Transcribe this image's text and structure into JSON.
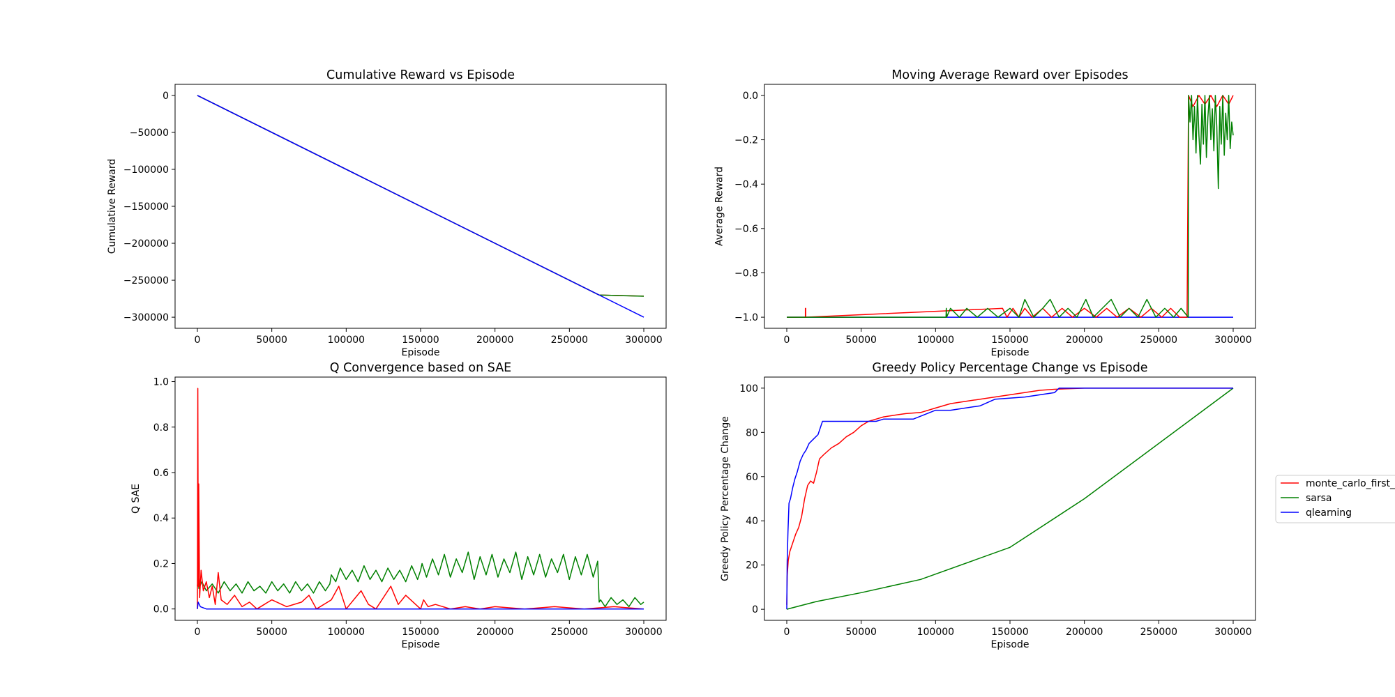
{
  "figure": {
    "legend": {
      "placement": "outside-right",
      "entries": [
        {
          "label": "monte_carlo_first_",
          "color": "#ff0000"
        },
        {
          "label": "sarsa",
          "color": "#008000"
        },
        {
          "label": "qlearning",
          "color": "#0000ff"
        }
      ]
    }
  },
  "chart_data": [
    {
      "type": "line",
      "title": "Cumulative Reward vs Episode",
      "xlabel": "Episode",
      "ylabel": "Cumulative Reward",
      "xlim": [
        -15000,
        315000
      ],
      "ylim": [
        -315000,
        15000
      ],
      "xticks": [
        0,
        50000,
        100000,
        150000,
        200000,
        250000,
        300000
      ],
      "yticks": [
        0,
        -50000,
        -100000,
        -150000,
        -200000,
        -250000,
        -300000
      ],
      "grid": false,
      "series": [
        {
          "name": "monte_carlo_first_",
          "color": "#ff0000",
          "x": [
            0,
            270000,
            300000
          ],
          "y": [
            0,
            -270000,
            -271500
          ]
        },
        {
          "name": "sarsa",
          "color": "#008000",
          "x": [
            0,
            270000,
            300000
          ],
          "y": [
            0,
            -270000,
            -271600
          ]
        },
        {
          "name": "qlearning",
          "color": "#0000ff",
          "x": [
            0,
            300000
          ],
          "y": [
            0,
            -300000
          ]
        }
      ]
    },
    {
      "type": "line",
      "title": "Moving Average Reward over Episodes",
      "xlabel": "Episode",
      "ylabel": "Average Reward",
      "xlim": [
        -15000,
        315000
      ],
      "ylim": [
        -1.05,
        0.05
      ],
      "xticks": [
        0,
        50000,
        100000,
        150000,
        200000,
        250000,
        300000
      ],
      "yticks": [
        0.0,
        -0.2,
        -0.4,
        -0.6,
        -0.8,
        -1.0
      ],
      "grid": false,
      "series": [
        {
          "name": "qlearning",
          "color": "#0000ff",
          "x": [
            0,
            300000
          ],
          "y": [
            -1.0,
            -1.0
          ]
        },
        {
          "name": "monte_carlo_first_",
          "color": "#ff0000",
          "x": [
            0,
            12500,
            12500,
            12700,
            12700,
            145000,
            148000,
            152000,
            156000,
            160000,
            165000,
            172000,
            178000,
            185000,
            192000,
            200000,
            208000,
            215000,
            222000,
            230000,
            238000,
            245000,
            252000,
            258000,
            264000,
            269000,
            270000,
            273000,
            277000,
            281000,
            285000,
            289000,
            293000,
            297000,
            300000
          ],
          "y": [
            -1.0,
            -1.0,
            -0.96,
            -0.96,
            -1.0,
            -0.96,
            -1.0,
            -0.96,
            -1.0,
            -0.96,
            -1.0,
            -0.96,
            -1.0,
            -0.96,
            -1.0,
            -0.96,
            -1.0,
            -0.96,
            -1.0,
            -0.96,
            -1.0,
            -0.96,
            -1.0,
            -0.96,
            -1.0,
            -1.0,
            0.0,
            -0.05,
            0.0,
            -0.04,
            0.0,
            -0.05,
            0.0,
            -0.04,
            0.0
          ]
        },
        {
          "name": "sarsa",
          "color": "#008000",
          "x": [
            0,
            107000,
            107200,
            107400,
            110000,
            116000,
            121000,
            128000,
            135000,
            142000,
            150000,
            156000,
            160000,
            166000,
            172000,
            177000,
            183000,
            189000,
            195000,
            201000,
            206000,
            212000,
            218000,
            224000,
            230000,
            236000,
            242000,
            248000,
            254000,
            260000,
            265000,
            269800,
            270000,
            271000,
            272000,
            273000,
            274000,
            275000,
            276000,
            277000,
            278000,
            279000,
            280000,
            281000,
            282000,
            283000,
            284000,
            285000,
            286000,
            287000,
            288000,
            289000,
            290000,
            291000,
            292000,
            293000,
            294000,
            295000,
            296000,
            297000,
            298000,
            299000,
            300000
          ],
          "y": [
            -1.0,
            -1.0,
            -0.96,
            -1.0,
            -0.96,
            -1.0,
            -0.96,
            -1.0,
            -0.96,
            -1.0,
            -0.96,
            -1.0,
            -0.92,
            -1.0,
            -0.96,
            -0.92,
            -1.0,
            -0.96,
            -1.0,
            -0.92,
            -1.0,
            -0.96,
            -0.92,
            -1.0,
            -0.96,
            -1.0,
            -0.92,
            -1.0,
            -0.96,
            -1.0,
            -0.96,
            -1.0,
            0.0,
            -0.12,
            0.0,
            -0.2,
            -0.05,
            -0.26,
            0.0,
            -0.18,
            -0.31,
            -0.04,
            -0.22,
            0.0,
            -0.28,
            -0.1,
            0.0,
            -0.2,
            -0.06,
            -0.25,
            0.0,
            -0.14,
            -0.42,
            -0.05,
            -0.22,
            0.0,
            -0.27,
            -0.08,
            -0.2,
            0.0,
            -0.24,
            -0.12,
            -0.18
          ]
        }
      ]
    },
    {
      "type": "line",
      "title": "Q Convergence based on SAE",
      "xlabel": "Episode",
      "ylabel": "Q SAE",
      "xlim": [
        -15000,
        315000
      ],
      "ylim": [
        -0.05,
        1.02
      ],
      "xticks": [
        0,
        50000,
        100000,
        150000,
        200000,
        250000,
        300000
      ],
      "yticks": [
        0.0,
        0.2,
        0.4,
        0.6,
        0.8,
        1.0
      ],
      "grid": false,
      "series": [
        {
          "name": "sarsa",
          "color": "#008000",
          "x": [
            0,
            500,
            1000,
            3000,
            6000,
            10000,
            14000,
            18000,
            22000,
            26000,
            30000,
            34000,
            38000,
            42000,
            46000,
            50000,
            54000,
            58000,
            62000,
            66000,
            70000,
            74000,
            78000,
            82000,
            86000,
            89000,
            90000,
            93000,
            96000,
            100000,
            104000,
            108000,
            112000,
            116000,
            120000,
            124000,
            128000,
            132000,
            136000,
            140000,
            144000,
            148000,
            150000,
            151000,
            154000,
            158000,
            162000,
            166000,
            170000,
            174000,
            178000,
            182000,
            186000,
            190000,
            194000,
            198000,
            202000,
            206000,
            210000,
            214000,
            218000,
            222000,
            226000,
            230000,
            234000,
            238000,
            242000,
            246000,
            250000,
            254000,
            258000,
            262000,
            266000,
            269000,
            270000,
            271000,
            274000,
            278000,
            282000,
            286000,
            290000,
            294000,
            298000,
            300000
          ],
          "y": [
            0.1,
            0.15,
            0.09,
            0.12,
            0.08,
            0.11,
            0.07,
            0.12,
            0.08,
            0.11,
            0.07,
            0.12,
            0.08,
            0.1,
            0.07,
            0.12,
            0.08,
            0.11,
            0.07,
            0.12,
            0.08,
            0.11,
            0.07,
            0.12,
            0.08,
            0.11,
            0.15,
            0.12,
            0.18,
            0.13,
            0.17,
            0.12,
            0.19,
            0.13,
            0.17,
            0.12,
            0.18,
            0.13,
            0.17,
            0.12,
            0.19,
            0.13,
            0.17,
            0.2,
            0.14,
            0.22,
            0.15,
            0.24,
            0.14,
            0.22,
            0.16,
            0.25,
            0.13,
            0.23,
            0.15,
            0.24,
            0.14,
            0.22,
            0.16,
            0.25,
            0.13,
            0.23,
            0.15,
            0.24,
            0.14,
            0.22,
            0.16,
            0.24,
            0.13,
            0.23,
            0.15,
            0.24,
            0.14,
            0.21,
            0.03,
            0.04,
            0.01,
            0.05,
            0.02,
            0.04,
            0.01,
            0.05,
            0.02,
            0.03
          ]
        },
        {
          "name": "monte_carlo_first_",
          "color": "#ff0000",
          "x": [
            0,
            300,
            600,
            900,
            1500,
            2500,
            4000,
            6000,
            8000,
            10000,
            12000,
            14000,
            16000,
            20000,
            25000,
            30000,
            35000,
            40000,
            50000,
            60000,
            70000,
            75000,
            80000,
            90000,
            95000,
            100000,
            110000,
            115000,
            120000,
            130000,
            135000,
            140000,
            150000,
            152000,
            155000,
            160000,
            170000,
            180000,
            190000,
            200000,
            220000,
            240000,
            260000,
            280000,
            300000
          ],
          "y": [
            0.0,
            0.97,
            0.1,
            0.55,
            0.05,
            0.17,
            0.08,
            0.12,
            0.05,
            0.1,
            0.02,
            0.16,
            0.04,
            0.02,
            0.06,
            0.01,
            0.03,
            0.0,
            0.04,
            0.01,
            0.03,
            0.06,
            0.0,
            0.04,
            0.1,
            0.0,
            0.08,
            0.02,
            0.0,
            0.1,
            0.02,
            0.06,
            0.0,
            0.04,
            0.01,
            0.02,
            0.0,
            0.01,
            0.0,
            0.01,
            0.0,
            0.01,
            0.0,
            0.01,
            0.0
          ]
        },
        {
          "name": "qlearning",
          "color": "#0000ff",
          "x": [
            0,
            500,
            2000,
            6000,
            300000
          ],
          "y": [
            0.0,
            0.03,
            0.01,
            0.0,
            0.0
          ]
        }
      ]
    },
    {
      "type": "line",
      "title": "Greedy Policy Percentage Change vs Episode",
      "xlabel": "Episode",
      "ylabel": "Greedy Policy Percentage Change",
      "xlim": [
        -15000,
        315000
      ],
      "ylim": [
        -5,
        105
      ],
      "xticks": [
        0,
        50000,
        100000,
        150000,
        200000,
        250000,
        300000
      ],
      "yticks": [
        0,
        20,
        40,
        60,
        80,
        100
      ],
      "grid": false,
      "series": [
        {
          "name": "monte_carlo_first_",
          "color": "#ff0000",
          "x": [
            0,
            300,
            1000,
            2000,
            4000,
            6000,
            8000,
            10000,
            12000,
            14000,
            16000,
            18000,
            20000,
            22000,
            25000,
            30000,
            35000,
            40000,
            45000,
            50000,
            55000,
            60000,
            65000,
            70000,
            75000,
            80000,
            90000,
            100000,
            110000,
            120000,
            130000,
            150000,
            170000,
            180000,
            200000,
            250000,
            300000
          ],
          "y": [
            2,
            15,
            22,
            26,
            30,
            34,
            37,
            42,
            50,
            56,
            58,
            57,
            62,
            68,
            70,
            73,
            75,
            78,
            80,
            83,
            85,
            86,
            87,
            87.5,
            88,
            88.5,
            89,
            91,
            93,
            94,
            95,
            97,
            99,
            99.5,
            100,
            100,
            100
          ]
        },
        {
          "name": "sarsa",
          "color": "#008000",
          "x": [
            0,
            20000,
            50000,
            90000,
            150000,
            200000,
            270000,
            300000
          ],
          "y": [
            0,
            3.5,
            7.5,
            13.5,
            28,
            50,
            85,
            100
          ]
        },
        {
          "name": "qlearning",
          "color": "#0000ff",
          "x": [
            0,
            300,
            800,
            1500,
            2500,
            4000,
            5500,
            7000,
            9000,
            11000,
            13000,
            15000,
            18000,
            21000,
            24000,
            60000,
            65000,
            85000,
            100000,
            110000,
            130000,
            140000,
            160000,
            180000,
            183000,
            300000
          ],
          "y": [
            0,
            22,
            35,
            48,
            50,
            55,
            59,
            62,
            67,
            70,
            72,
            75,
            77,
            79,
            85,
            85,
            86,
            86,
            90,
            90,
            92,
            95,
            96,
            98,
            100,
            100
          ]
        }
      ]
    }
  ]
}
